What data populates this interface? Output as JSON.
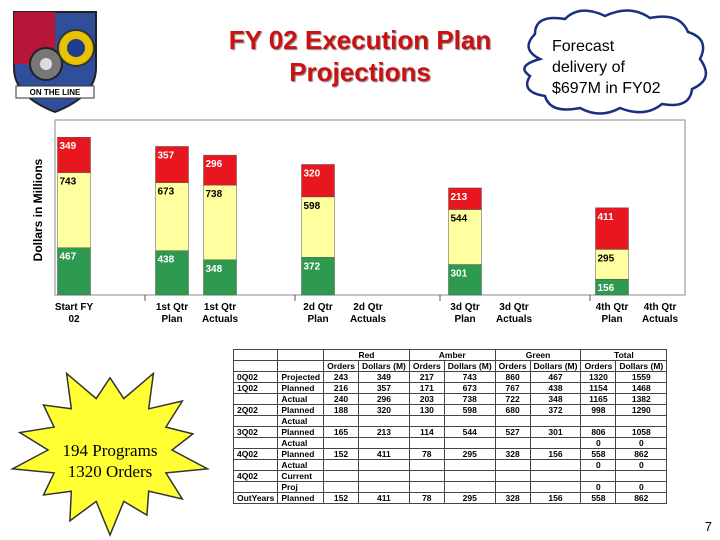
{
  "title": {
    "line1": "FY 02 Execution Plan",
    "line2": "Projections"
  },
  "callout": {
    "line1": "Forecast",
    "line2": "delivery of",
    "line3": "$697M in FY02"
  },
  "logo": {
    "banner": "ON THE LINE"
  },
  "starburst": {
    "line1": "194 Programs",
    "line2": "1320 Orders"
  },
  "page_number": "7",
  "colors": {
    "red": "#e8161e",
    "amber": "#ffffa0",
    "green": "#2e9a50",
    "title": "#cc1111",
    "plot_bg": "#c0c0c0"
  },
  "chart_data": {
    "type": "bar",
    "stacked": true,
    "ylabel": "Dollars in Millions",
    "categories": [
      [
        "Start FY",
        "02"
      ],
      [
        "1st Qtr",
        "Plan"
      ],
      [
        "1st Qtr",
        "Actuals"
      ],
      [
        "2d Qtr",
        "Plan"
      ],
      [
        "2d Qtr",
        "Actuals"
      ],
      [
        "3d Qtr",
        "Plan"
      ],
      [
        "3d Qtr",
        "Actuals"
      ],
      [
        "4th Qtr",
        "Plan"
      ],
      [
        "4th Qtr",
        "Actuals"
      ]
    ],
    "series": [
      {
        "color": "green",
        "values": [
          467,
          438,
          348,
          372,
          null,
          301,
          null,
          156,
          null
        ]
      },
      {
        "color": "amber",
        "values": [
          743,
          673,
          738,
          598,
          null,
          544,
          null,
          295,
          null
        ]
      },
      {
        "color": "red",
        "values": [
          349,
          357,
          296,
          320,
          null,
          213,
          null,
          411,
          null
        ]
      }
    ],
    "ylim": [
      0,
      1680
    ],
    "grid": false
  },
  "table": {
    "group_headers": [
      "",
      "",
      "Red",
      "Amber",
      "Green",
      "Total"
    ],
    "sub_headers": [
      "",
      "",
      "Orders",
      "Dollars (M)",
      "Orders",
      "Dollars (M)",
      "Orders",
      "Dollars (M)",
      "Orders",
      "Dollars (M)"
    ],
    "rows": [
      [
        "0Q02",
        "Projected",
        "243",
        "349",
        "217",
        "743",
        "860",
        "467",
        "1320",
        "1559"
      ],
      [
        "1Q02",
        "Planned",
        "216",
        "357",
        "171",
        "673",
        "767",
        "438",
        "1154",
        "1468"
      ],
      [
        "",
        "Actual",
        "240",
        "296",
        "203",
        "738",
        "722",
        "348",
        "1165",
        "1382"
      ],
      [
        "2Q02",
        "Planned",
        "188",
        "320",
        "130",
        "598",
        "680",
        "372",
        "998",
        "1290"
      ],
      [
        "",
        "Actual",
        "",
        "",
        "",
        "",
        "",
        "",
        "",
        ""
      ],
      [
        "3Q02",
        "Planned",
        "165",
        "213",
        "114",
        "544",
        "527",
        "301",
        "806",
        "1058"
      ],
      [
        "",
        "Actual",
        "",
        "",
        "",
        "",
        "",
        "",
        "0",
        "0"
      ],
      [
        "4Q02",
        "Planned",
        "152",
        "411",
        "78",
        "295",
        "328",
        "156",
        "558",
        "862"
      ],
      [
        "",
        "Actual",
        "",
        "",
        "",
        "",
        "",
        "",
        "0",
        "0"
      ],
      [
        "4Q02",
        "Current",
        "",
        "",
        "",
        "",
        "",
        "",
        "",
        ""
      ],
      [
        "",
        "Proj",
        "",
        "",
        "",
        "",
        "",
        "",
        "0",
        "0"
      ],
      [
        "OutYears",
        "Planned",
        "152",
        "411",
        "78",
        "295",
        "328",
        "156",
        "558",
        "862"
      ]
    ]
  }
}
